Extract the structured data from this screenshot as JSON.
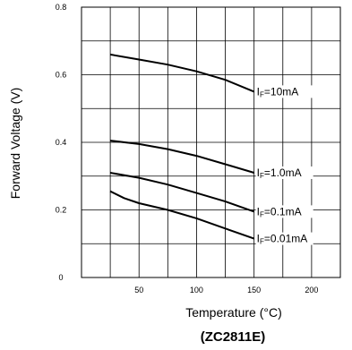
{
  "chart_data": {
    "type": "line",
    "title": "",
    "caption": "(ZC2811E)",
    "xlabel": "Temperature (°C)",
    "ylabel": "Forward Voltage (V)",
    "xlim": [
      0,
      225
    ],
    "ylim": [
      0,
      0.8
    ],
    "xticks": [
      50,
      100,
      150,
      200
    ],
    "xtick_labels": [
      "50",
      "100",
      "150",
      "200"
    ],
    "yticks": [
      0,
      0.2,
      0.4,
      0.6,
      0.8
    ],
    "ytick_labels": [
      "0",
      "0.2",
      "0.4",
      "0.6",
      "0.8"
    ],
    "grid": {
      "x_minor_step": 25,
      "y_minor_step": 0.1
    },
    "series": [
      {
        "label_main": "I",
        "label_sub": "F",
        "label_rest": "=10mA",
        "x": [
          25,
          50,
          75,
          100,
          125,
          150
        ],
        "y": [
          0.66,
          0.645,
          0.63,
          0.61,
          0.585,
          0.55
        ]
      },
      {
        "label_main": "I",
        "label_sub": "F",
        "label_rest": "=1.0mA",
        "x": [
          25,
          50,
          75,
          100,
          125,
          150
        ],
        "y": [
          0.405,
          0.395,
          0.38,
          0.36,
          0.335,
          0.31
        ]
      },
      {
        "label_main": "I",
        "label_sub": "F",
        "label_rest": "=0.1mA",
        "x": [
          25,
          50,
          75,
          100,
          125,
          150
        ],
        "y": [
          0.31,
          0.295,
          0.275,
          0.25,
          0.225,
          0.195
        ]
      },
      {
        "label_main": "I",
        "label_sub": "F",
        "label_rest": "=0.01mA",
        "x": [
          25,
          37,
          50,
          75,
          100,
          125,
          150
        ],
        "y": [
          0.255,
          0.235,
          0.22,
          0.2,
          0.175,
          0.145,
          0.115
        ]
      }
    ]
  }
}
